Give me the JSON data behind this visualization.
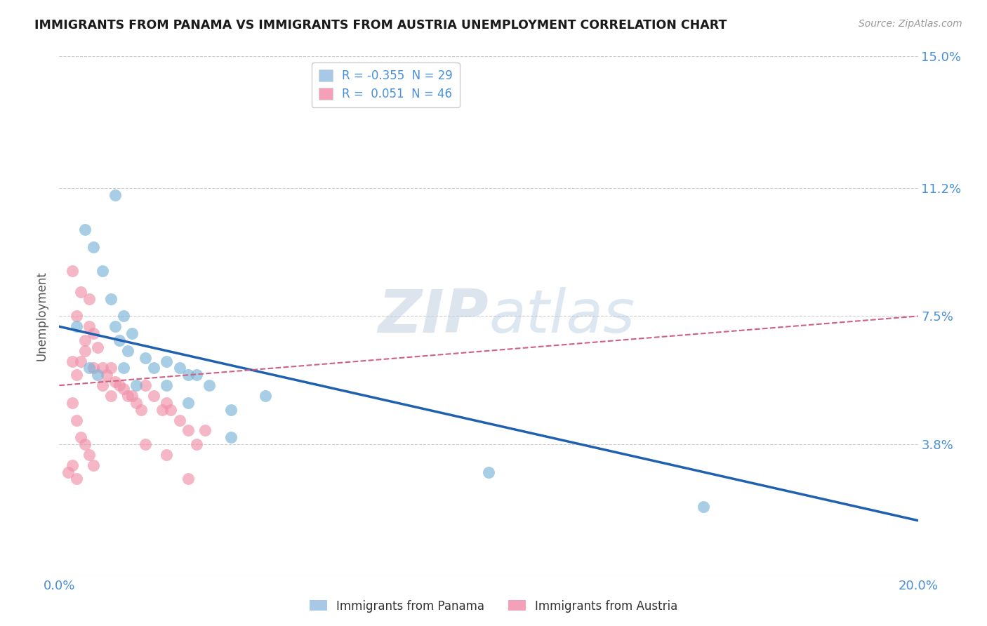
{
  "title": "IMMIGRANTS FROM PANAMA VS IMMIGRANTS FROM AUSTRIA UNEMPLOYMENT CORRELATION CHART",
  "source": "Source: ZipAtlas.com",
  "ylabel": "Unemployment",
  "xlim": [
    0,
    0.2
  ],
  "ylim": [
    0,
    0.15
  ],
  "yticks": [
    0.0,
    0.038,
    0.075,
    0.112,
    0.15
  ],
  "ytick_labels": [
    "",
    "3.8%",
    "7.5%",
    "11.2%",
    "15.0%"
  ],
  "xticks": [
    0.0,
    0.05,
    0.1,
    0.15,
    0.2
  ],
  "xtick_labels": [
    "0.0%",
    "",
    "",
    "",
    "20.0%"
  ],
  "watermark_zip": "ZIP",
  "watermark_atlas": "atlas",
  "legend_entries": [
    {
      "label": "R = -0.355  N = 29",
      "color": "#a8c8e8"
    },
    {
      "label": "R =  0.051  N = 46",
      "color": "#f4a0b8"
    }
  ],
  "panama_color": "#7ab4d8",
  "austria_color": "#f090a8",
  "panama_line_color": "#2060b0",
  "austria_line_color": "#d06080",
  "background_color": "#ffffff",
  "grid_color": "#cccccc",
  "axis_label_color": "#4a90d9",
  "panama_points": [
    [
      0.004,
      0.072
    ],
    [
      0.006,
      0.1
    ],
    [
      0.01,
      0.088
    ],
    [
      0.012,
      0.08
    ],
    [
      0.013,
      0.072
    ],
    [
      0.015,
      0.075
    ],
    [
      0.016,
      0.065
    ],
    [
      0.017,
      0.07
    ],
    [
      0.014,
      0.068
    ],
    [
      0.008,
      0.095
    ],
    [
      0.02,
      0.063
    ],
    [
      0.022,
      0.06
    ],
    [
      0.025,
      0.062
    ],
    [
      0.028,
      0.06
    ],
    [
      0.03,
      0.058
    ],
    [
      0.025,
      0.055
    ],
    [
      0.03,
      0.05
    ],
    [
      0.035,
      0.055
    ],
    [
      0.04,
      0.048
    ],
    [
      0.018,
      0.055
    ],
    [
      0.013,
      0.11
    ],
    [
      0.007,
      0.06
    ],
    [
      0.009,
      0.058
    ],
    [
      0.032,
      0.058
    ],
    [
      0.015,
      0.06
    ],
    [
      0.048,
      0.052
    ],
    [
      0.1,
      0.03
    ],
    [
      0.15,
      0.02
    ],
    [
      0.04,
      0.04
    ]
  ],
  "austria_points": [
    [
      0.003,
      0.062
    ],
    [
      0.004,
      0.058
    ],
    [
      0.005,
      0.062
    ],
    [
      0.006,
      0.068
    ],
    [
      0.007,
      0.072
    ],
    [
      0.008,
      0.07
    ],
    [
      0.009,
      0.066
    ],
    [
      0.01,
      0.06
    ],
    [
      0.011,
      0.058
    ],
    [
      0.012,
      0.06
    ],
    [
      0.013,
      0.056
    ],
    [
      0.014,
      0.055
    ],
    [
      0.015,
      0.054
    ],
    [
      0.016,
      0.052
    ],
    [
      0.017,
      0.052
    ],
    [
      0.018,
      0.05
    ],
    [
      0.019,
      0.048
    ],
    [
      0.02,
      0.055
    ],
    [
      0.022,
      0.052
    ],
    [
      0.024,
      0.048
    ],
    [
      0.025,
      0.05
    ],
    [
      0.026,
      0.048
    ],
    [
      0.028,
      0.045
    ],
    [
      0.03,
      0.042
    ],
    [
      0.032,
      0.038
    ],
    [
      0.034,
      0.042
    ],
    [
      0.003,
      0.088
    ],
    [
      0.005,
      0.082
    ],
    [
      0.007,
      0.08
    ],
    [
      0.004,
      0.075
    ],
    [
      0.006,
      0.065
    ],
    [
      0.008,
      0.06
    ],
    [
      0.01,
      0.055
    ],
    [
      0.012,
      0.052
    ],
    [
      0.003,
      0.05
    ],
    [
      0.004,
      0.045
    ],
    [
      0.005,
      0.04
    ],
    [
      0.006,
      0.038
    ],
    [
      0.007,
      0.035
    ],
    [
      0.008,
      0.032
    ],
    [
      0.003,
      0.032
    ],
    [
      0.004,
      0.028
    ],
    [
      0.002,
      0.03
    ],
    [
      0.02,
      0.038
    ],
    [
      0.025,
      0.035
    ],
    [
      0.03,
      0.028
    ]
  ],
  "panama_line": {
    "x0": 0.0,
    "y0": 0.072,
    "x1": 0.2,
    "y1": 0.016
  },
  "austria_line": {
    "x0": 0.0,
    "y0": 0.055,
    "x1": 0.2,
    "y1": 0.075
  },
  "bottom_legend": [
    {
      "label": "Immigrants from Panama",
      "color": "#a8c8e8"
    },
    {
      "label": "Immigrants from Austria",
      "color": "#f4a0b8"
    }
  ]
}
